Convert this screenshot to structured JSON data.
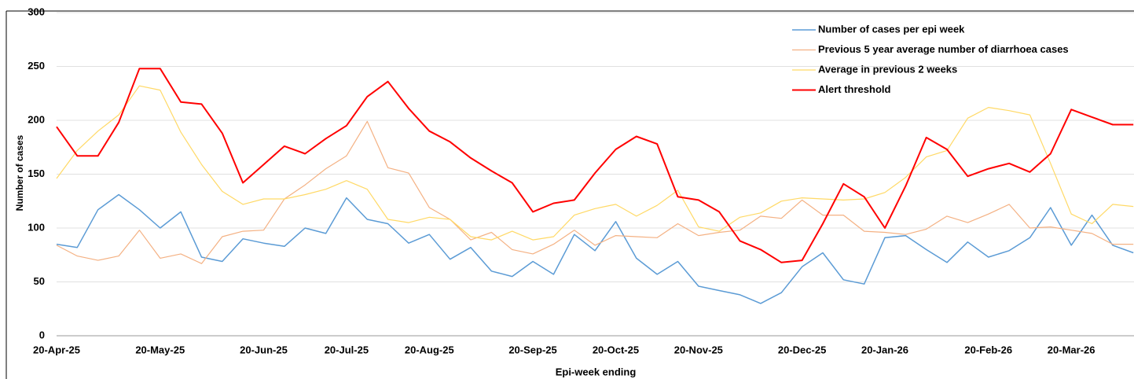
{
  "chart_data": {
    "type": "line",
    "y_label": "Number of cases",
    "x_label": "Epi-week ending",
    "categories": [
      "20-Apr-25",
      null,
      null,
      null,
      null,
      "20-May-25",
      null,
      null,
      null,
      null,
      "20-Jun-25",
      null,
      null,
      null,
      "20-Jul-25",
      null,
      null,
      null,
      "20-Aug-25",
      null,
      null,
      null,
      null,
      "20-Sep-25",
      null,
      null,
      null,
      "20-Oct-25",
      null,
      null,
      null,
      "20-Nov-25",
      null,
      null,
      null,
      null,
      "20-Dec-25",
      null,
      null,
      null,
      "20-Jan-26",
      null,
      null,
      null,
      null,
      "20-Feb-26",
      null,
      null,
      null,
      "20-Mar-26",
      null,
      null,
      null
    ],
    "series": [
      {
        "name": "Number of cases per epi week",
        "color": "#5b9bd5",
        "width": 1.5,
        "values": [
          85,
          82,
          117,
          131,
          117,
          100,
          115,
          73,
          69,
          90,
          86,
          83,
          100,
          95,
          128,
          108,
          104,
          86,
          94,
          71,
          82,
          60,
          55,
          69,
          57,
          94,
          79,
          106,
          72,
          57,
          69,
          46,
          42,
          38,
          30,
          40,
          64,
          77,
          52,
          48,
          91,
          93,
          80,
          68,
          87,
          73,
          79,
          91,
          119,
          84,
          112,
          84,
          77
        ]
      },
      {
        "name": "Previous 5 year average number of diarrhoea cases",
        "color": "#f4b183",
        "width": 1.2,
        "values": [
          84,
          74,
          70,
          74,
          98,
          72,
          76,
          67,
          92,
          97,
          98,
          127,
          140,
          155,
          167,
          199,
          156,
          151,
          119,
          108,
          89,
          96,
          80,
          76,
          85,
          98,
          84,
          93,
          92,
          91,
          104,
          93,
          96,
          98,
          111,
          109,
          126,
          112,
          112,
          97,
          96,
          94,
          99,
          111,
          105,
          113,
          122,
          100,
          101,
          98,
          95,
          85,
          85
        ]
      },
      {
        "name": "Average in previous 2 weeks",
        "color": "#ffd966",
        "width": 1.2,
        "values": [
          146,
          172,
          190,
          205,
          232,
          228,
          189,
          159,
          134,
          122,
          127,
          127,
          131,
          136,
          144,
          136,
          108,
          105,
          110,
          108,
          92,
          89,
          97,
          89,
          92,
          112,
          118,
          122,
          111,
          121,
          135,
          101,
          97,
          110,
          114,
          125,
          128,
          127,
          126,
          127,
          133,
          147,
          166,
          172,
          202,
          212,
          209,
          205,
          160,
          113,
          104,
          122,
          120
        ]
      },
      {
        "name": "Alert threshold",
        "color": "#ff0000",
        "width": 2,
        "values": [
          194,
          167,
          167,
          198,
          248,
          248,
          217,
          215,
          188,
          142,
          159,
          176,
          169,
          183,
          195,
          222,
          236,
          211,
          190,
          180,
          165,
          153,
          142,
          115,
          123,
          126,
          151,
          173,
          185,
          178,
          129,
          126,
          115,
          88,
          80,
          68,
          70,
          104,
          141,
          129,
          100,
          139,
          184,
          173,
          148,
          155,
          160,
          152,
          169,
          210,
          203,
          196,
          196
        ]
      }
    ],
    "ylim": [
      0,
      300
    ],
    "yticks": [
      0,
      50,
      100,
      150,
      200,
      250,
      300
    ],
    "grid": true,
    "legend": "upper right"
  }
}
